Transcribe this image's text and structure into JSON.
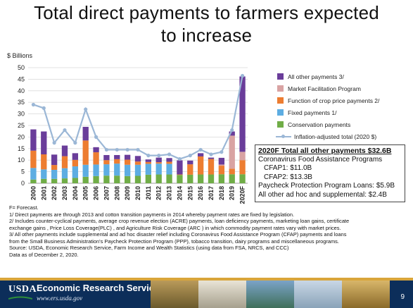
{
  "slide": {
    "title_line1": "Total direct payments to farmers expected",
    "title_line2": "to increase",
    "page_number": "9"
  },
  "chart_data": {
    "type": "bar",
    "stacked": true,
    "ylabel": "$ Billions",
    "ylim": [
      0,
      50
    ],
    "yticks": [
      0,
      5,
      10,
      15,
      20,
      25,
      30,
      35,
      40,
      45,
      50
    ],
    "grid": true,
    "legend_position": "right",
    "categories": [
      "2000",
      "2001",
      "2002",
      "2003",
      "2004",
      "2005",
      "2006",
      "2007",
      "2008",
      "2009",
      "2010",
      "2011",
      "2012",
      "2013",
      "2014",
      "2015",
      "2016",
      "2017",
      "2018",
      "2019",
      "2020F"
    ],
    "series": [
      {
        "name": "Conservation payments",
        "color": "#70ad47",
        "values": [
          1.6,
          1.9,
          1.9,
          2.1,
          2.3,
          2.8,
          3.1,
          3.3,
          3.3,
          3.1,
          3.2,
          3.7,
          3.8,
          3.8,
          3.6,
          3.7,
          3.8,
          3.8,
          3.9,
          3.9,
          3.9
        ]
      },
      {
        "name": "Fixed payments 1/",
        "color": "#5dade2",
        "values": [
          5.0,
          4.1,
          3.9,
          4.4,
          5.0,
          5.2,
          5.0,
          4.9,
          5.2,
          4.9,
          4.8,
          4.7,
          4.7,
          4.6,
          0,
          0,
          0,
          0,
          0,
          0,
          0
        ]
      },
      {
        "name": "Function of crop price payments 2/",
        "color": "#ed7d31",
        "values": [
          7.5,
          6.5,
          2.1,
          5.2,
          2.8,
          10.5,
          5.3,
          1.8,
          1.9,
          2.2,
          1.4,
          0.8,
          0.6,
          0.9,
          0.2,
          4.5,
          7.8,
          6.7,
          3.7,
          2.4,
          6.1
        ]
      },
      {
        "name": "Market Facilitation Program",
        "color": "#d9a3a3",
        "values": [
          0,
          0,
          0,
          0,
          0,
          0,
          0,
          0,
          0,
          0,
          0,
          0,
          0,
          0,
          0,
          0,
          0,
          0,
          0.5,
          14.3,
          3.6
        ]
      },
      {
        "name": "All other payments 3/",
        "color": "#6a3d9a",
        "values": [
          9.2,
          9.9,
          4.5,
          4.6,
          2.9,
          5.9,
          2.2,
          2.2,
          1.8,
          2.1,
          2.4,
          1.1,
          2.0,
          1.6,
          6.1,
          1.6,
          1.4,
          0.6,
          2.9,
          1.8,
          32.6
        ]
      }
    ],
    "line": {
      "name": "Inflation-adjusted total (2020 $)",
      "color": "#9bb7d6",
      "values": [
        34.0,
        32.5,
        17.5,
        23.0,
        17.5,
        32.0,
        20.0,
        14.5,
        14.5,
        14.5,
        14.5,
        12.0,
        12.0,
        12.5,
        10.5,
        12.0,
        14.5,
        12.5,
        13.5,
        23.0,
        46.5
      ]
    }
  },
  "legend": {
    "items": [
      {
        "label": "All other payments 3/",
        "color": "#6a3d9a"
      },
      {
        "label": "Market Facilitation Program",
        "color": "#d9a3a3"
      },
      {
        "label": "Function of crop price payments 2/",
        "color": "#ed7d31"
      },
      {
        "label": "Fixed payments 1/",
        "color": "#5dade2"
      },
      {
        "label": "Conservation payments",
        "color": "#70ad47"
      }
    ],
    "line_label": "Inflation-adjusted total (2020 $)"
  },
  "infobox": {
    "heading": "2020F Total all other payments $32.6B",
    "line1": "Coronavirus Food Assistance Programs",
    "line2": "CFAP1:  $11.0B",
    "line3": "CFAP2:  $13.3B",
    "line4": "Paycheck Protection Program Loans:  $5.9B",
    "line5": "All other ad hoc and supplemental:  $2.4B"
  },
  "notes": [
    "F= Forecast.",
    "1/ Direct payments are through 2013 and cotton transition payments in 2014 whereby payment rates are fixed by legislation.",
    "2/ Includes counter-cyclical payments, average crop revenue election (ACRE) payments, loan deficiency payments, marketing loan gains,  certificate",
    "exchange gains , Price Loss Coverage(PLC) , and Agriculture Risk Coverage (ARC ) in which commodity payment rates vary with market prices.",
    "3/ All other payments include supplemental and ad hoc disaster relief including Coronavirus Food Assistance Program (CFAP) payments and loans",
    "from the Small Business Administration's Paycheck Protection Program (PPP), tobacco transition, dairy programs and miscellaneous programs.",
    "Source: USDA, Economic Research Service, Farm Income and Wealth Statistics (using data from FSA, NRCS, and CCC)",
    "Data as of December 2, 2020."
  ],
  "footer": {
    "logo_text": "USDA",
    "org_name": "Economic Research Service",
    "url": "www.ers.usda.gov",
    "colors": {
      "band": "#0c2e5a",
      "accent": "#d9a53a"
    }
  }
}
